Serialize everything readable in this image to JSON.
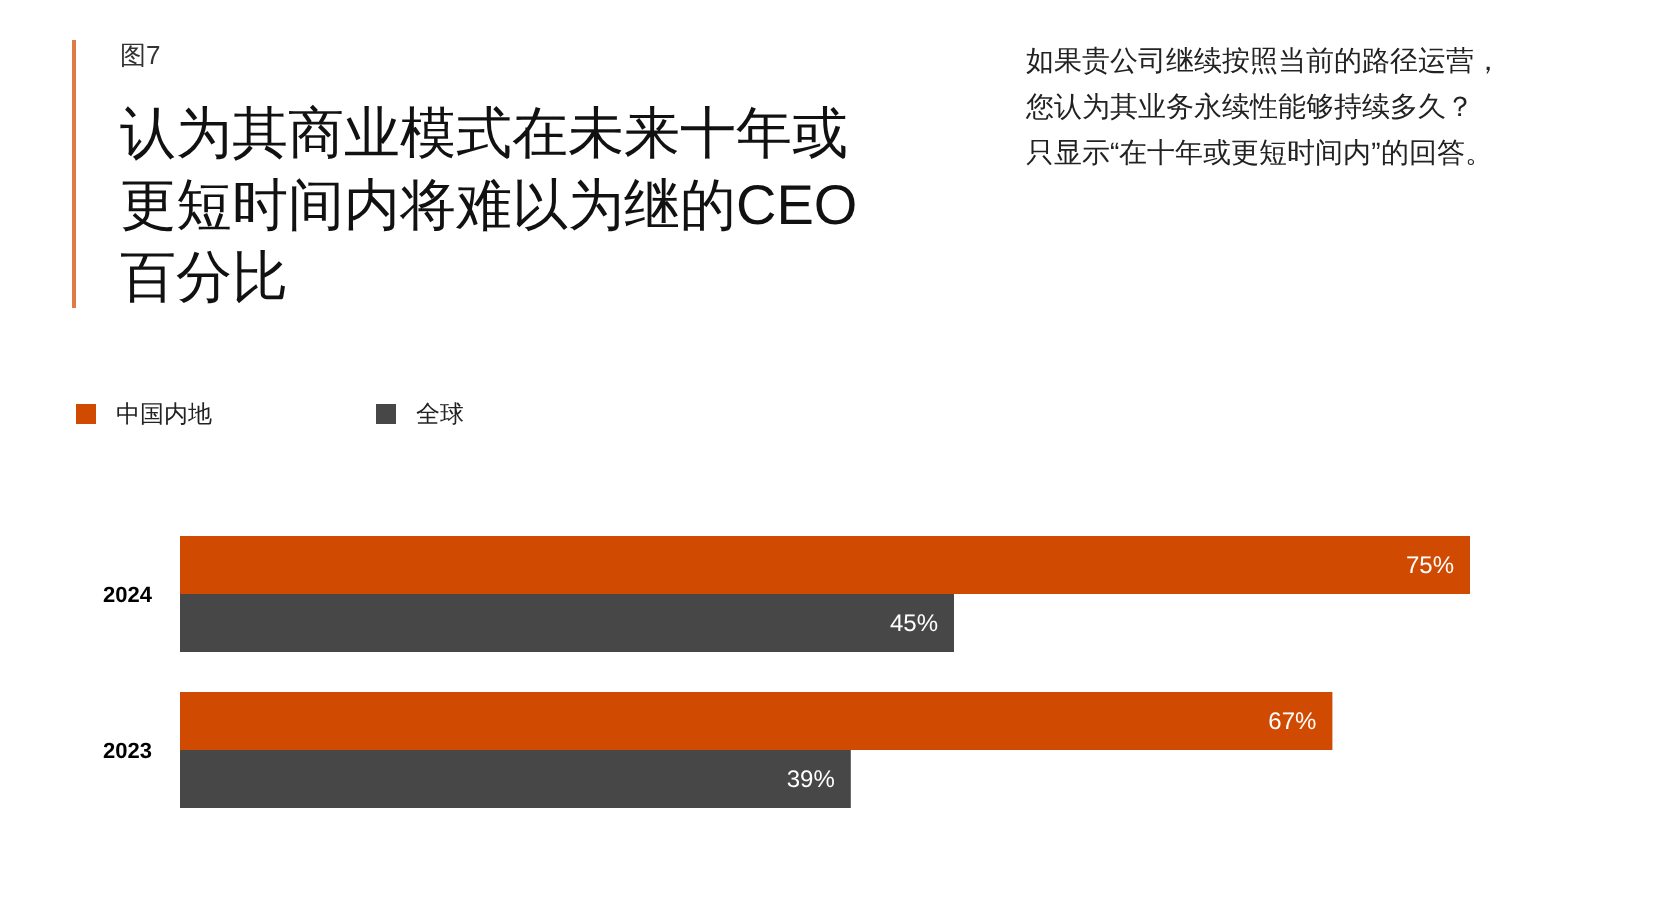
{
  "chart_data": {
    "type": "bar",
    "orientation": "horizontal",
    "title": "认为其商业模式在未来十年或更短时间内将难以为继的CEO百分比",
    "subtitle": "如果贵公司继续按照当前的路径运营，您认为其业务永续性能够持续多久？只显示“在十年或更短时间内”的回答。",
    "annotations": [
      "图7"
    ],
    "categories": [
      "2024",
      "2023"
    ],
    "series": [
      {
        "name": "中国内地",
        "color": "#d04a02",
        "values": [
          75,
          67
        ],
        "value_labels": [
          "75%",
          "67%"
        ]
      },
      {
        "name": "全球",
        "color": "#474747",
        "values": [
          45,
          39
        ],
        "value_labels": [
          "45%",
          "39%"
        ]
      }
    ],
    "legend": "top left"
  }
}
